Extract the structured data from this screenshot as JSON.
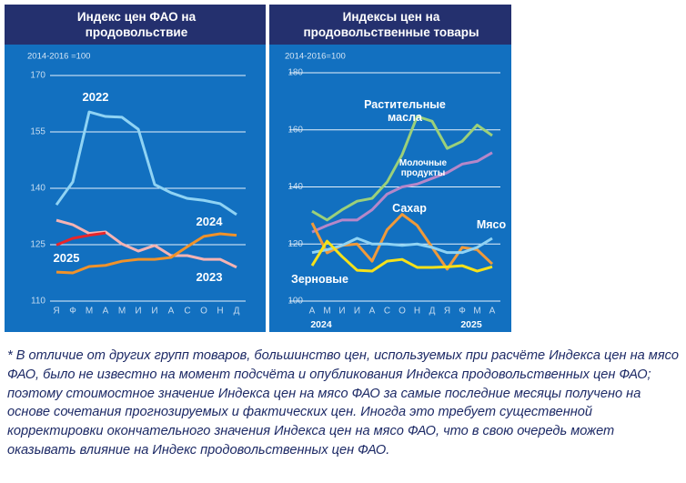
{
  "chart_data": [
    {
      "type": "line",
      "title": "Индекс цен ФАО на продовольствие",
      "subtitle": "2014-2016 =100",
      "categories": [
        "Я",
        "Ф",
        "М",
        "А",
        "М",
        "И",
        "И",
        "А",
        "С",
        "О",
        "Н",
        "Д"
      ],
      "ylim": [
        110,
        170
      ],
      "yticks": [
        110,
        125,
        140,
        155,
        170
      ],
      "grid": true,
      "series": [
        {
          "name": "2022",
          "color": "#8fd3f4",
          "values": [
            135.6,
            141.7,
            160.3,
            159.1,
            158.9,
            155.7,
            141,
            138.8,
            137.3,
            136.8,
            135.9,
            133
          ]
        },
        {
          "name": "2023",
          "color": "#f5b3b3",
          "values": [
            131.5,
            130.3,
            128,
            128.4,
            125.2,
            123.3,
            124.8,
            122.1,
            122.1,
            121.1,
            121.1,
            119
          ]
        },
        {
          "name": "2024",
          "color": "#f0922a",
          "values": [
            117.7,
            117.5,
            119.2,
            119.5,
            120.6,
            121.1,
            121.1,
            121.6,
            124.5,
            127.2,
            127.9,
            127.5
          ]
        },
        {
          "name": "2025",
          "color": "#e8252a",
          "values": [
            124.9,
            126.7,
            127.5,
            128.1,
            null,
            null,
            null,
            null,
            null,
            null,
            null,
            null
          ]
        }
      ]
    },
    {
      "type": "line",
      "title": "Индексы цен на продовольственные товары",
      "subtitle": "2014-2016=100",
      "categories": [
        "А",
        "М",
        "И",
        "И",
        "А",
        "С",
        "О",
        "Н",
        "Д",
        "Я",
        "Ф",
        "М",
        "А"
      ],
      "year_labels": [
        "2024",
        "2025"
      ],
      "ylim": [
        100,
        180
      ],
      "yticks": [
        100,
        120,
        140,
        160,
        180
      ],
      "grid": true,
      "series": [
        {
          "name": "Растительные масла",
          "color": "#9bd07a",
          "values": [
            131.5,
            128.4,
            132,
            135,
            136,
            141.7,
            151.3,
            164.7,
            163,
            153.5,
            156,
            161.7,
            158
          ]
        },
        {
          "name": "Молочные продукты",
          "color": "#b687c9",
          "values": [
            124.2,
            126.5,
            128.4,
            128.4,
            132,
            137.5,
            140,
            141,
            143,
            145,
            148,
            149,
            152
          ]
        },
        {
          "name": "Сахар",
          "color": "#f09a3a",
          "values": [
            127.4,
            116.9,
            119.5,
            120,
            114,
            125,
            130.4,
            126.5,
            118.8,
            111.2,
            118.8,
            118,
            113
          ]
        },
        {
          "name": "Мясо",
          "color": "#8fd3f4",
          "values": [
            117,
            118,
            119.5,
            122,
            120,
            120,
            119.5,
            120,
            118.8,
            117,
            117,
            118.8,
            122
          ]
        },
        {
          "name": "Зерновые",
          "color": "#f5e11a",
          "values": [
            112.4,
            121,
            115.6,
            110.8,
            110.5,
            114,
            114.6,
            111.8,
            111.8,
            112,
            112.4,
            110.5,
            112
          ]
        }
      ]
    }
  ],
  "footnote": "* В отличие от других групп товаров, большинство цен, используемых при расчёте Индекса цен на мясо ФАО, было не известно на момент подсчёта и опубликования Индекса продовольственных цен ФАО; поэтому стоимостное значение Индекса цен на мясо ФАО за самые последние месяцы получено на основе сочетания прогнозируемых и фактических цен. Иногда это требует существенной корректировки окончательного значения Индекса цен на мясо ФАО, что в свою очередь может оказывать влияние на Индекс продовольственных цен ФАО."
}
